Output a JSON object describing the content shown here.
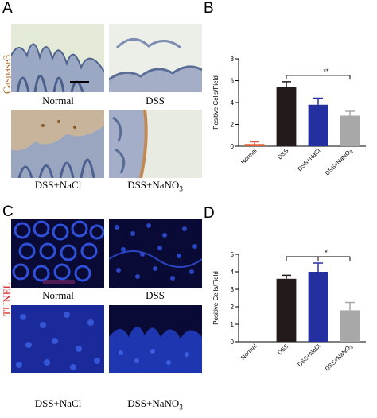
{
  "panels": {
    "A": "A",
    "B": "B",
    "C": "C",
    "D": "D"
  },
  "side_labels": {
    "caspase": "Caspase3",
    "tunel": "TUNEL"
  },
  "image_labels": {
    "normal_a": "Normal",
    "dss_a": "DSS",
    "nacl_a": "DSS+NaCl",
    "nano3_a_main": "DSS+NaNO",
    "nano3_a_sub": "3",
    "normal_c": "Normal",
    "dss_c": "DSS",
    "nacl_c": "DSS+NaCl",
    "nano3_c_main": "DSS+NaNO",
    "nano3_c_sub": "3"
  },
  "colors": {
    "normal": "#e06040",
    "dss": "#231a1a",
    "nacl": "#2430a0",
    "nano3": "#a8a8a8"
  },
  "chart_data": [
    {
      "type": "bar",
      "panel": "B",
      "ylabel": "Positive Cells/Field",
      "ylim": [
        0,
        8
      ],
      "yticks": [
        0,
        2,
        4,
        6,
        8
      ],
      "categories": [
        "Normal",
        "DSS",
        "DSS+NaCl",
        "DSS+NaNO3"
      ],
      "values": [
        0.2,
        5.4,
        3.8,
        2.8
      ],
      "errors": [
        0.2,
        0.5,
        0.6,
        0.4
      ],
      "significance": {
        "from": "DSS",
        "to": "DSS+NaNO3",
        "label": "**"
      }
    },
    {
      "type": "bar",
      "panel": "D",
      "ylabel": "Positive Cells/Field",
      "ylim": [
        0,
        5
      ],
      "yticks": [
        0,
        1,
        2,
        3,
        4,
        5
      ],
      "categories": [
        "Normal",
        "DSS",
        "DSS+NaCl",
        "DSS+NaNO3"
      ],
      "values": [
        0,
        3.6,
        4.0,
        1.8
      ],
      "errors": [
        0,
        0.2,
        0.5,
        0.45
      ],
      "significance": {
        "from": "DSS",
        "to": "DSS+NaNO3",
        "also": "DSS+NaCl",
        "label": "*"
      }
    }
  ]
}
